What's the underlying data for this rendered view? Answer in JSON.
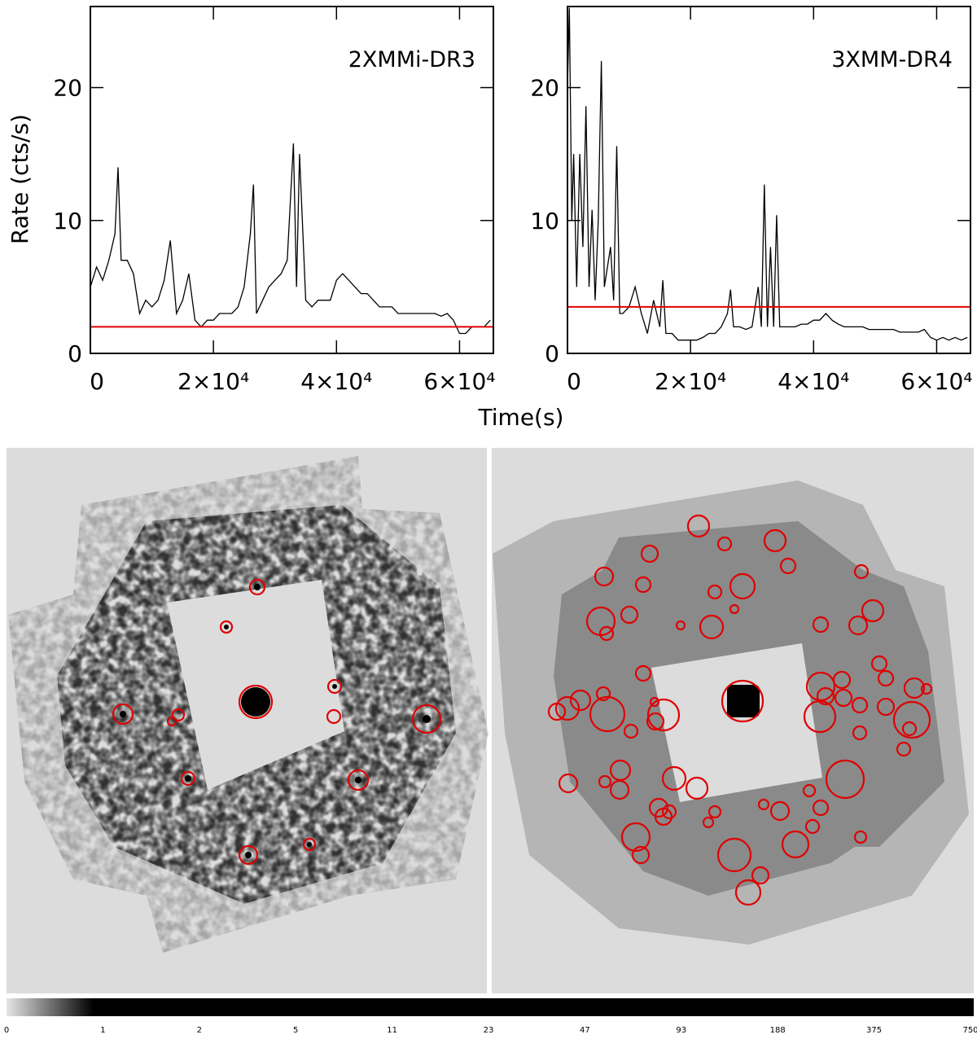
{
  "chart_data": [
    {
      "type": "line",
      "annotation": "2XMMi-DR3",
      "xlim": [
        0,
        65500
      ],
      "ylim": [
        0,
        26.1
      ],
      "yticks": [
        0,
        10,
        20
      ],
      "xticks": [
        0,
        {
          "value": 20000,
          "label": "2×10⁴"
        },
        {
          "value": 40000,
          "label": "4×10⁴"
        },
        {
          "value": 60000,
          "label": "6×10⁴"
        }
      ],
      "color": "#000000",
      "threshold": 2,
      "threshold_color": "#e00000",
      "x": [
        0,
        1000,
        2000,
        3000,
        4000,
        4500,
        5000,
        6000,
        7000,
        8000,
        9000,
        10000,
        11000,
        12000,
        13000,
        14000,
        15000,
        16000,
        17000,
        18000,
        19000,
        20000,
        21000,
        22000,
        23000,
        24000,
        25000,
        26000,
        26500,
        27000,
        28000,
        29000,
        30000,
        31000,
        32000,
        33000,
        33500,
        34000,
        35000,
        36000,
        37000,
        38000,
        39000,
        40000,
        41000,
        42000,
        43000,
        44000,
        45000,
        46000,
        47000,
        48000,
        49000,
        50000,
        51000,
        52000,
        53000,
        54000,
        55000,
        56000,
        57000,
        58000,
        59000,
        60000,
        61000,
        62000,
        63000,
        64000,
        65000
      ],
      "values": [
        5,
        6.5,
        5.5,
        7,
        9,
        14,
        7,
        7,
        6,
        3,
        4,
        3.5,
        4,
        5.5,
        8.5,
        3,
        4,
        6,
        2.5,
        2,
        2.5,
        2.5,
        3,
        3,
        3,
        3.5,
        5,
        9,
        12.7,
        3,
        4,
        5,
        5.5,
        6,
        7,
        15.8,
        5,
        15,
        4,
        3.5,
        4,
        4,
        4,
        5.5,
        6,
        5.5,
        5,
        4.5,
        4.5,
        4,
        3.5,
        3.5,
        3.5,
        3,
        3,
        3,
        3,
        3,
        3,
        3,
        2.8,
        3,
        2.5,
        1.5,
        1.5,
        2,
        2,
        2,
        2.5
      ]
    },
    {
      "type": "line",
      "annotation": "3XMM-DR4",
      "xlim": [
        0,
        65500
      ],
      "ylim": [
        0,
        26.1
      ],
      "yticks": [
        0,
        10,
        20
      ],
      "xticks": [
        0,
        {
          "value": 20000,
          "label": "2×10⁴"
        },
        {
          "value": 40000,
          "label": "4×10⁴"
        },
        {
          "value": 60000,
          "label": "6×10⁴"
        }
      ],
      "color": "#000000",
      "threshold": 3.5,
      "threshold_color": "#e00000",
      "x": [
        0,
        300,
        700,
        1000,
        1500,
        2000,
        2500,
        3000,
        3500,
        4000,
        4500,
        5000,
        5500,
        6000,
        7000,
        7500,
        8000,
        8500,
        9000,
        10000,
        11000,
        12000,
        13000,
        14000,
        15000,
        15500,
        16000,
        17000,
        18000,
        19000,
        20000,
        21000,
        22000,
        23000,
        24000,
        25000,
        26000,
        26500,
        27000,
        28000,
        29000,
        30000,
        31000,
        31500,
        32000,
        32500,
        33000,
        33500,
        34000,
        34500,
        35000,
        36000,
        37000,
        38000,
        39000,
        40000,
        41000,
        42000,
        43000,
        44000,
        45000,
        46000,
        47000,
        48000,
        49000,
        50000,
        51000,
        52000,
        53000,
        54000,
        55000,
        56000,
        57000,
        58000,
        59000,
        60000,
        61000,
        62000,
        63000,
        64000,
        65000
      ],
      "values": [
        20,
        26,
        10,
        15,
        5,
        15,
        8,
        18.6,
        5,
        10.8,
        4,
        10,
        22,
        5,
        8,
        4,
        15.6,
        3,
        3,
        3.5,
        5,
        3,
        1.5,
        4,
        2,
        5.5,
        1.5,
        1.5,
        1,
        1,
        1,
        1,
        1.2,
        1.5,
        1.5,
        2,
        3,
        4.8,
        2,
        2,
        1.8,
        2,
        5,
        2,
        12.7,
        2,
        8,
        2,
        10.4,
        2,
        2,
        2,
        2,
        2.2,
        2.2,
        2.5,
        2.5,
        3,
        2.5,
        2.2,
        2,
        2,
        2,
        2,
        1.8,
        1.8,
        1.8,
        1.8,
        1.8,
        1.6,
        1.6,
        1.6,
        1.6,
        1.8,
        1.2,
        1,
        1.2,
        1,
        1.2,
        1,
        1.2
      ]
    }
  ],
  "xlabel": "Time(s)",
  "ylabel": "Rate (cts/s)",
  "colorbar": {
    "labels": [
      "0",
      "1",
      "2",
      "5",
      "11",
      "23",
      "47",
      "93",
      "188",
      "375",
      "750"
    ]
  }
}
